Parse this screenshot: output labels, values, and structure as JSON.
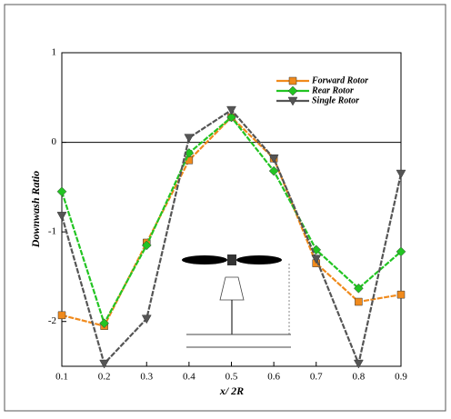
{
  "chart_data": {
    "type": "line",
    "x_label": "x/ 2R",
    "y_label": "Downwash Ratio",
    "x": [
      0.1,
      0.2,
      0.3,
      0.4,
      0.5,
      0.6,
      0.7,
      0.8,
      0.9
    ],
    "xlim": [
      0.1,
      0.9
    ],
    "xticks": [
      0.1,
      0.2,
      0.3,
      0.4,
      0.5,
      0.6,
      0.7,
      0.8,
      0.9
    ],
    "ylim": [
      -2.5,
      1
    ],
    "yticks": [
      -2,
      -1,
      0,
      1
    ],
    "legend": "upper right",
    "series": [
      {
        "name": "Forward Rotor",
        "color": "#f08a1c",
        "marker": "square",
        "values": [
          -1.93,
          -2.05,
          -1.12,
          -0.2,
          0.28,
          -0.18,
          -1.35,
          -1.78,
          -1.7
        ]
      },
      {
        "name": "Rear Rotor",
        "color": "#22c422",
        "marker": "diamond",
        "values": [
          -0.55,
          -2.02,
          -1.15,
          -0.12,
          0.28,
          -0.32,
          -1.2,
          -1.63,
          -1.22
        ]
      },
      {
        "name": "Single Rotor",
        "color": "#555555",
        "marker": "triangle-down",
        "values": [
          -0.82,
          -2.47,
          -1.97,
          0.05,
          0.36,
          -0.18,
          -1.3,
          -2.47,
          -0.35
        ]
      }
    ]
  }
}
